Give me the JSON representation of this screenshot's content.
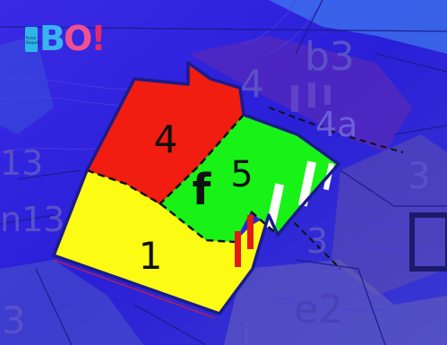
{
  "logo": {
    "mark": "BO!",
    "badge_text": "Portal Bezpečnosti",
    "colors": {
      "b": "#38b4f0",
      "o": "#f05090",
      "excl": "#e62a6c"
    }
  },
  "plots": [
    {
      "label": "4",
      "color": "#f01d10"
    },
    {
      "label": "5",
      "color": "#19f217"
    },
    {
      "label": "1",
      "color": "#fbfb14"
    },
    {
      "label": "f",
      "color": "#111111"
    }
  ],
  "background_labels": [
    {
      "text": "4"
    },
    {
      "text": "b3"
    },
    {
      "text": "4a"
    },
    {
      "text": "13"
    },
    {
      "text": "n13"
    },
    {
      "text": "3"
    },
    {
      "text": "3"
    },
    {
      "text": "3"
    },
    {
      "text": "e2"
    },
    {
      "text": "i"
    }
  ],
  "colors": {
    "background": "#2a1fd8",
    "boundary": "#1b1b8a",
    "accent_red": "#e01c12"
  }
}
